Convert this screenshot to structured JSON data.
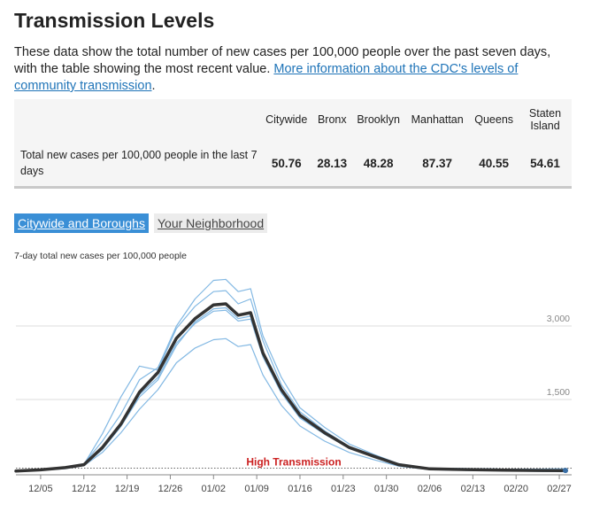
{
  "header": {
    "title": "Transmission Levels",
    "intro_text": "These data show the total number of new cases per 100,000 people over the past seven days, with the table showing the most recent value. ",
    "intro_link": "More information about the CDC's levels of community transmission",
    "intro_end": "."
  },
  "summary_table": {
    "columns": [
      "Citywide",
      "Bronx",
      "Brooklyn",
      "Manhattan",
      "Queens",
      "Staten Island"
    ],
    "row_label": "Total new cases per 100,000 people in the last 7 days",
    "values": [
      "50.76",
      "28.13",
      "48.28",
      "87.37",
      "40.55",
      "54.61"
    ]
  },
  "tabs": [
    {
      "label": "Citywide and Boroughs",
      "active": true
    },
    {
      "label": "Your Neighborhood",
      "active": false
    }
  ],
  "colors": {
    "citywide": "#333333",
    "borough": "#82b8e3",
    "threshold": "#cc2222",
    "accent": "#3a8fd6"
  },
  "chart_data": {
    "type": "line",
    "ylabel": "7-day total new cases per 100,000 people",
    "ylim": [
      0,
      4300
    ],
    "yticks": [
      1500,
      3000
    ],
    "ytick_labels": [
      "1,500",
      "3,000"
    ],
    "xlim": [
      "2021-12-01",
      "2022-03-01"
    ],
    "xticks": [
      "2021-12-05",
      "2021-12-12",
      "2021-12-19",
      "2021-12-26",
      "2022-01-02",
      "2022-01-09",
      "2022-01-16",
      "2022-01-23",
      "2022-01-30",
      "2022-02-06",
      "2022-02-13",
      "2022-02-20",
      "2022-02-27"
    ],
    "xtick_labels": [
      "12/05",
      "12/12",
      "12/19",
      "12/26",
      "01/02",
      "01/09",
      "01/16",
      "01/23",
      "01/30",
      "02/06",
      "02/13",
      "02/20",
      "02/27"
    ],
    "threshold": {
      "value": 100,
      "label": "High Transmission"
    },
    "x": [
      "2021-12-01",
      "2021-12-05",
      "2021-12-09",
      "2021-12-12",
      "2021-12-15",
      "2021-12-18",
      "2021-12-21",
      "2021-12-24",
      "2021-12-27",
      "2021-12-30",
      "2022-01-02",
      "2022-01-04",
      "2022-01-06",
      "2022-01-08",
      "2022-01-10",
      "2022-01-13",
      "2022-01-16",
      "2022-01-20",
      "2022-01-24",
      "2022-01-28",
      "2022-02-01",
      "2022-02-06",
      "2022-02-12",
      "2022-02-18",
      "2022-02-24",
      "2022-02-28"
    ],
    "series": [
      {
        "name": "Citywide",
        "values": [
          40,
          65,
          110,
          170,
          520,
          1000,
          1650,
          2050,
          2750,
          3150,
          3430,
          3450,
          3220,
          3270,
          2450,
          1700,
          1180,
          820,
          520,
          340,
          170,
          85,
          70,
          60,
          52,
          51
        ]
      },
      {
        "name": "",
        "values": [
          30,
          50,
          90,
          150,
          420,
          820,
          1300,
          1700,
          2250,
          2550,
          2720,
          2740,
          2580,
          2620,
          2000,
          1380,
          960,
          650,
          420,
          270,
          140,
          70,
          55,
          45,
          32,
          28
        ]
      },
      {
        "name": "",
        "values": [
          40,
          60,
          105,
          160,
          480,
          950,
          1600,
          1950,
          2650,
          3050,
          3300,
          3320,
          3100,
          3140,
          2370,
          1630,
          1120,
          790,
          510,
          330,
          165,
          80,
          65,
          55,
          50,
          48
        ]
      },
      {
        "name": "",
        "values": [
          45,
          70,
          125,
          190,
          650,
          1200,
          1900,
          2150,
          3000,
          3550,
          3930,
          3950,
          3700,
          3760,
          2800,
          1950,
          1330,
          930,
          590,
          380,
          190,
          100,
          90,
          80,
          80,
          87
        ]
      },
      {
        "name": "",
        "values": [
          35,
          55,
          100,
          155,
          480,
          950,
          1550,
          1900,
          2600,
          3080,
          3350,
          3370,
          3150,
          3200,
          2400,
          1650,
          1130,
          800,
          500,
          330,
          160,
          75,
          60,
          50,
          44,
          41
        ]
      },
      {
        "name": "",
        "values": [
          40,
          62,
          115,
          175,
          800,
          1550,
          2180,
          2100,
          2950,
          3400,
          3700,
          3720,
          3450,
          3550,
          2700,
          1800,
          1250,
          860,
          540,
          360,
          175,
          85,
          70,
          60,
          55,
          55
        ]
      }
    ]
  }
}
